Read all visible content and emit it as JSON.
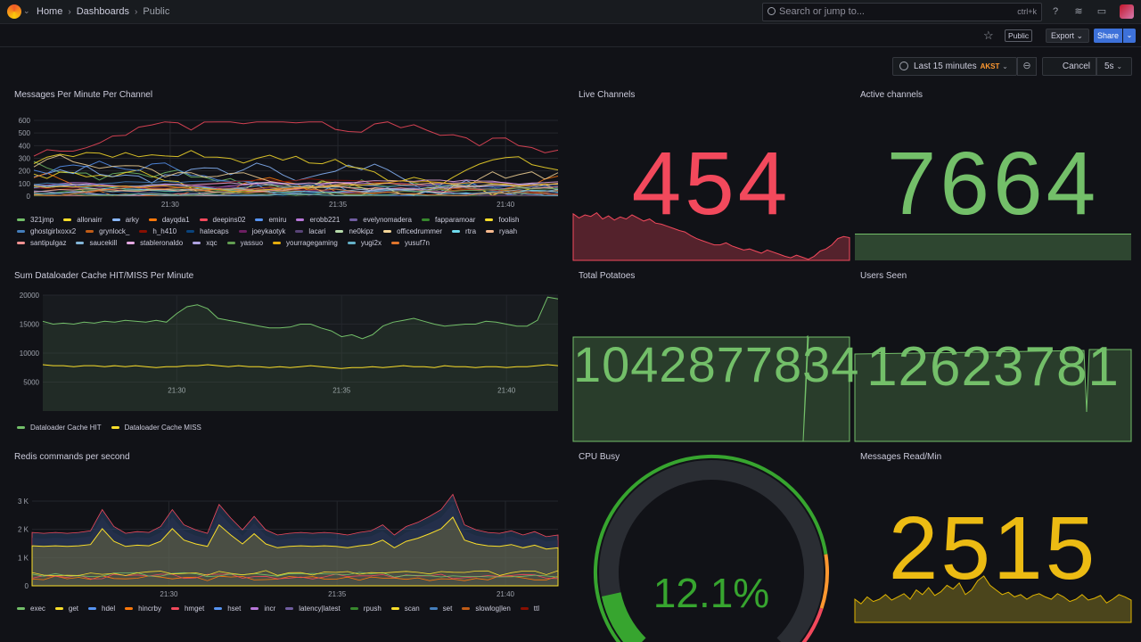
{
  "breadcrumb": {
    "home": "Home",
    "dashboards": "Dashboards",
    "current": "Public"
  },
  "search": {
    "placeholder": "Search or jump to...",
    "shortcut": "ctrl+k"
  },
  "toolbar": {
    "public_badge": "Public",
    "export_label": "Export",
    "share_label": "Share"
  },
  "timepicker": {
    "range": "Last 15 minutes",
    "timezone": "AKST",
    "cancel_label": "Cancel",
    "refresh_interval": "5s"
  },
  "colors": {
    "green": "#73bf69",
    "red": "#f2495c",
    "yellow": "#fade2a",
    "orange": "#ff9830",
    "background": "#111217"
  },
  "panels": {
    "messages": {
      "title": "Messages Per Minute Per Channel",
      "y_ticks": [
        "600",
        "500",
        "400",
        "300",
        "200",
        "100",
        "0"
      ],
      "x_ticks": [
        "21:30",
        "21:35",
        "21:40"
      ],
      "legend": [
        {
          "name": "321jmp",
          "color": "#73bf69"
        },
        {
          "name": "allonairr",
          "color": "#fade2a"
        },
        {
          "name": "arky",
          "color": "#8ab8ff"
        },
        {
          "name": "dayqda1",
          "color": "#ff780a"
        },
        {
          "name": "deepins02",
          "color": "#f2495c"
        },
        {
          "name": "emiru",
          "color": "#5794f2"
        },
        {
          "name": "erobb221",
          "color": "#b877d9"
        },
        {
          "name": "evelynomadera",
          "color": "#705da0"
        },
        {
          "name": "fapparamoar",
          "color": "#37872d"
        },
        {
          "name": "foolish",
          "color": "#fade2a"
        },
        {
          "name": "ghostgirlxoxx2",
          "color": "#447ebc"
        },
        {
          "name": "grynlock_",
          "color": "#c15c17"
        },
        {
          "name": "h_h410",
          "color": "#890f02"
        },
        {
          "name": "hatecaps",
          "color": "#0a437c"
        },
        {
          "name": "joeykaotyk",
          "color": "#6d1f62"
        },
        {
          "name": "lacari",
          "color": "#584477"
        },
        {
          "name": "ne0kipz",
          "color": "#b7dbab"
        },
        {
          "name": "officedrummer",
          "color": "#f4d598"
        },
        {
          "name": "rtra",
          "color": "#70dbed"
        },
        {
          "name": "ryaah",
          "color": "#f9ba8f"
        },
        {
          "name": "santipulgaz",
          "color": "#f29191"
        },
        {
          "name": "saucekill",
          "color": "#82b5d8"
        },
        {
          "name": "stableronaldo",
          "color": "#e5a8e2"
        },
        {
          "name": "xqc",
          "color": "#aea2e0"
        },
        {
          "name": "yassuo",
          "color": "#629e51"
        },
        {
          "name": "yourragegaming",
          "color": "#e5ac0e"
        },
        {
          "name": "yugi2x",
          "color": "#64b0c8"
        },
        {
          "name": "yusuf7n",
          "color": "#e0752d"
        }
      ]
    },
    "live": {
      "title": "Live Channels",
      "value": "454"
    },
    "active": {
      "title": "Active channels",
      "value": "7664"
    },
    "dataloader": {
      "title": "Sum Dataloader Cache HIT/MISS Per Minute",
      "y_ticks": [
        "20000",
        "15000",
        "10000",
        "5000"
      ],
      "x_ticks": [
        "21:30",
        "21:35",
        "21:40"
      ],
      "legend": [
        {
          "name": "Dataloader Cache HIT",
          "color": "#73bf69"
        },
        {
          "name": "Dataloader Cache MISS",
          "color": "#fade2a"
        }
      ]
    },
    "potatoes": {
      "title": "Total Potatoes",
      "value": "1042877834"
    },
    "users": {
      "title": "Users Seen",
      "value": "12623781"
    },
    "redis": {
      "title": "Redis commands per second",
      "y_ticks": [
        "3 K",
        "2 K",
        "1 K",
        "0"
      ],
      "x_ticks": [
        "21:30",
        "21:35",
        "21:40"
      ],
      "legend": [
        {
          "name": "exec",
          "color": "#73bf69"
        },
        {
          "name": "get",
          "color": "#fade2a"
        },
        {
          "name": "hdel",
          "color": "#5794f2"
        },
        {
          "name": "hincrby",
          "color": "#ff780a"
        },
        {
          "name": "hmget",
          "color": "#f2495c"
        },
        {
          "name": "hset",
          "color": "#5794f2"
        },
        {
          "name": "incr",
          "color": "#b877d9"
        },
        {
          "name": "latency|latest",
          "color": "#705da0"
        },
        {
          "name": "rpush",
          "color": "#37872d"
        },
        {
          "name": "scan",
          "color": "#fade2a"
        },
        {
          "name": "set",
          "color": "#447ebc"
        },
        {
          "name": "slowlog|len",
          "color": "#c15c17"
        },
        {
          "name": "ttl",
          "color": "#890f02"
        }
      ]
    },
    "cpu": {
      "title": "CPU Busy",
      "value": "12.1%",
      "percent": 12.1
    },
    "msgread": {
      "title": "Messages Read/Min",
      "value": "2515"
    }
  }
}
